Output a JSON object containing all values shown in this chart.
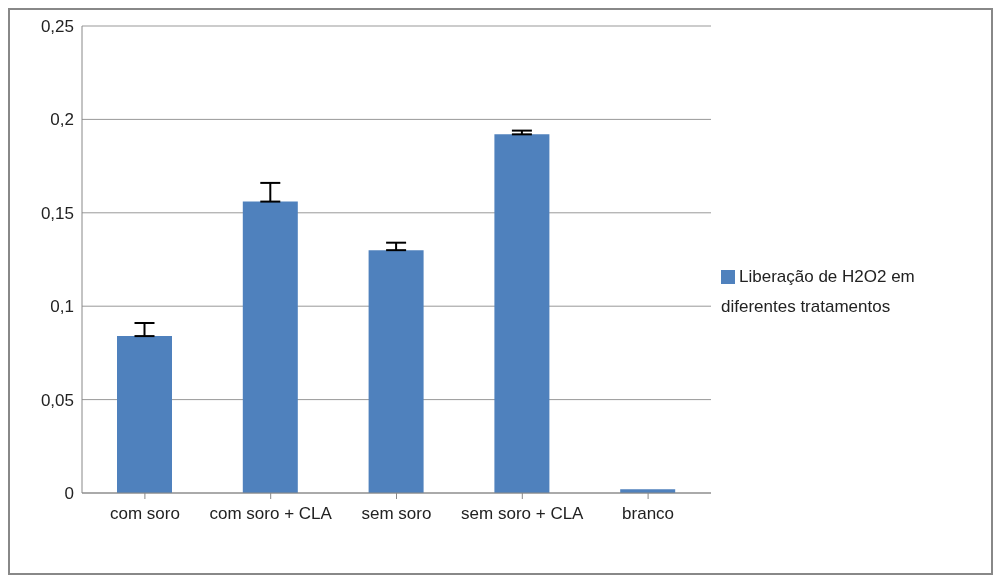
{
  "chart_data": {
    "type": "bar",
    "categories": [
      "com soro",
      "com soro + CLA",
      "sem soro",
      "sem soro + CLA",
      "branco"
    ],
    "series": [
      {
        "name": "Liberação de H2O2 em diferentes tratamentos",
        "color": "#4f81bd",
        "values": [
          0.084,
          0.156,
          0.13,
          0.192,
          0.002
        ],
        "errors": [
          [
            0.084,
            0.091
          ],
          [
            0.156,
            0.166
          ],
          [
            0.13,
            0.134
          ],
          [
            0.192,
            0.194
          ],
          null
        ]
      }
    ],
    "ylim": [
      0,
      0.25
    ],
    "yticks": [
      {
        "value": 0,
        "label": "0"
      },
      {
        "value": 0.05,
        "label": "0,05"
      },
      {
        "value": 0.1,
        "label": "0,1"
      },
      {
        "value": 0.15,
        "label": "0,15"
      },
      {
        "value": 0.2,
        "label": "0,2"
      },
      {
        "value": 0.25,
        "label": "0,25"
      }
    ],
    "grid": "y",
    "legend": "right"
  }
}
